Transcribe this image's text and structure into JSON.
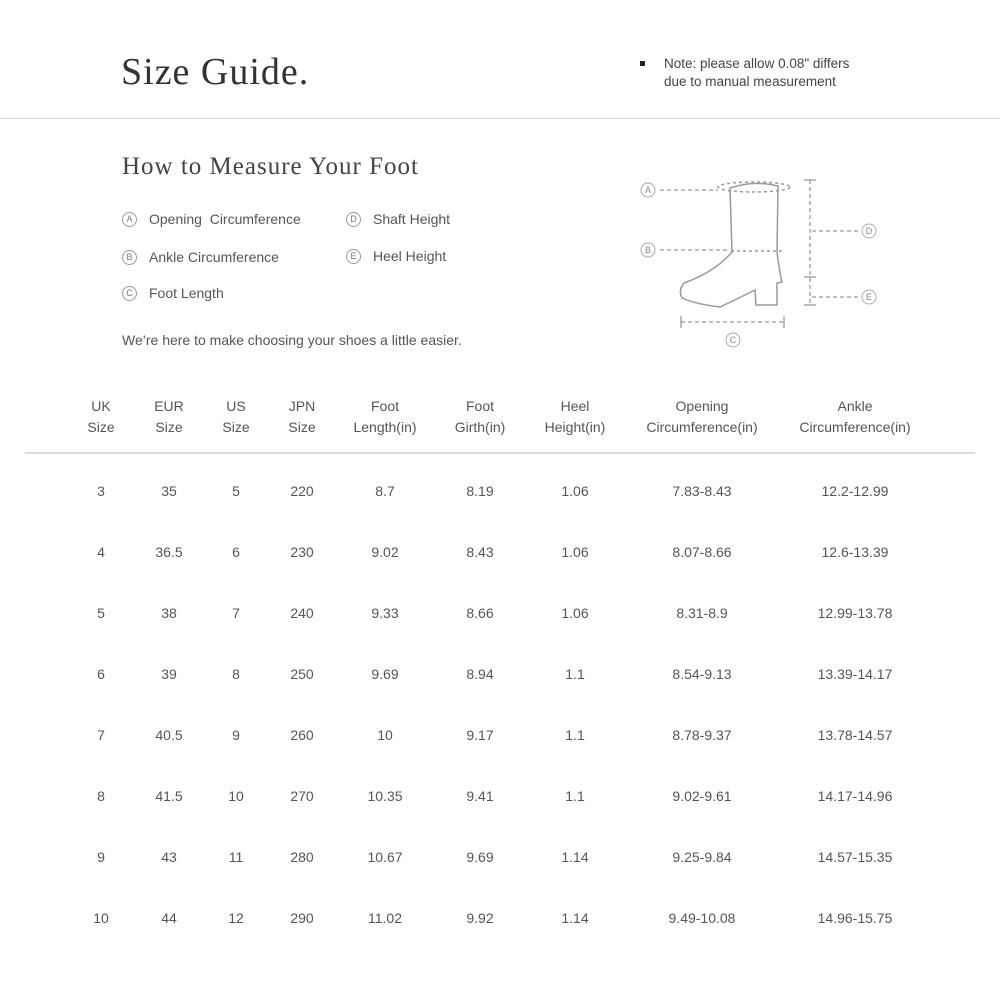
{
  "header": {
    "title": "Size Guide.",
    "note_line1": "Note: please allow 0.08\" differs",
    "note_line2": "due to manual measurement"
  },
  "measure": {
    "title": "How to Measure Your Foot",
    "items": [
      {
        "key": "A",
        "label": "Opening  Circumference"
      },
      {
        "key": "B",
        "label": "Ankle Circumference"
      },
      {
        "key": "C",
        "label": "Foot Length"
      },
      {
        "key": "D",
        "label": "Shaft Height"
      },
      {
        "key": "E",
        "label": "Heel Height"
      }
    ],
    "tagline": "We’re here to make choosing your shoes a little easier."
  },
  "diagram": {
    "labels": [
      "A",
      "B",
      "C",
      "D",
      "E"
    ]
  },
  "table": {
    "headers": [
      [
        "UK",
        "Size"
      ],
      [
        "EUR",
        "Size"
      ],
      [
        "US",
        "Size"
      ],
      [
        "JPN",
        "Size"
      ],
      [
        "Foot",
        "Length(in)"
      ],
      [
        "Foot",
        "Girth(in)"
      ],
      [
        "Heel",
        "Height(in)"
      ],
      [
        "Opening",
        "Circumference(in)"
      ],
      [
        "Ankle",
        "Circumference(in)"
      ]
    ],
    "rows": [
      [
        "3",
        "35",
        "5",
        "220",
        "8.7",
        "8.19",
        "1.06",
        "7.83-8.43",
        "12.2-12.99"
      ],
      [
        "4",
        "36.5",
        "6",
        "230",
        "9.02",
        "8.43",
        "1.06",
        "8.07-8.66",
        "12.6-13.39"
      ],
      [
        "5",
        "38",
        "7",
        "240",
        "9.33",
        "8.66",
        "1.06",
        "8.31-8.9",
        "12.99-13.78"
      ],
      [
        "6",
        "39",
        "8",
        "250",
        "9.69",
        "8.94",
        "1.1",
        "8.54-9.13",
        "13.39-14.17"
      ],
      [
        "7",
        "40.5",
        "9",
        "260",
        "10",
        "9.17",
        "1.1",
        "8.78-9.37",
        "13.78-14.57"
      ],
      [
        "8",
        "41.5",
        "10",
        "270",
        "10.35",
        "9.41",
        "1.1",
        "9.02-9.61",
        "14.17-14.96"
      ],
      [
        "9",
        "43",
        "11",
        "280",
        "10.67",
        "9.69",
        "1.14",
        "9.25-9.84",
        "14.57-15.35"
      ],
      [
        "10",
        "44",
        "12",
        "290",
        "11.02",
        "9.92",
        "1.14",
        "9.49-10.08",
        "14.96-15.75"
      ]
    ]
  }
}
